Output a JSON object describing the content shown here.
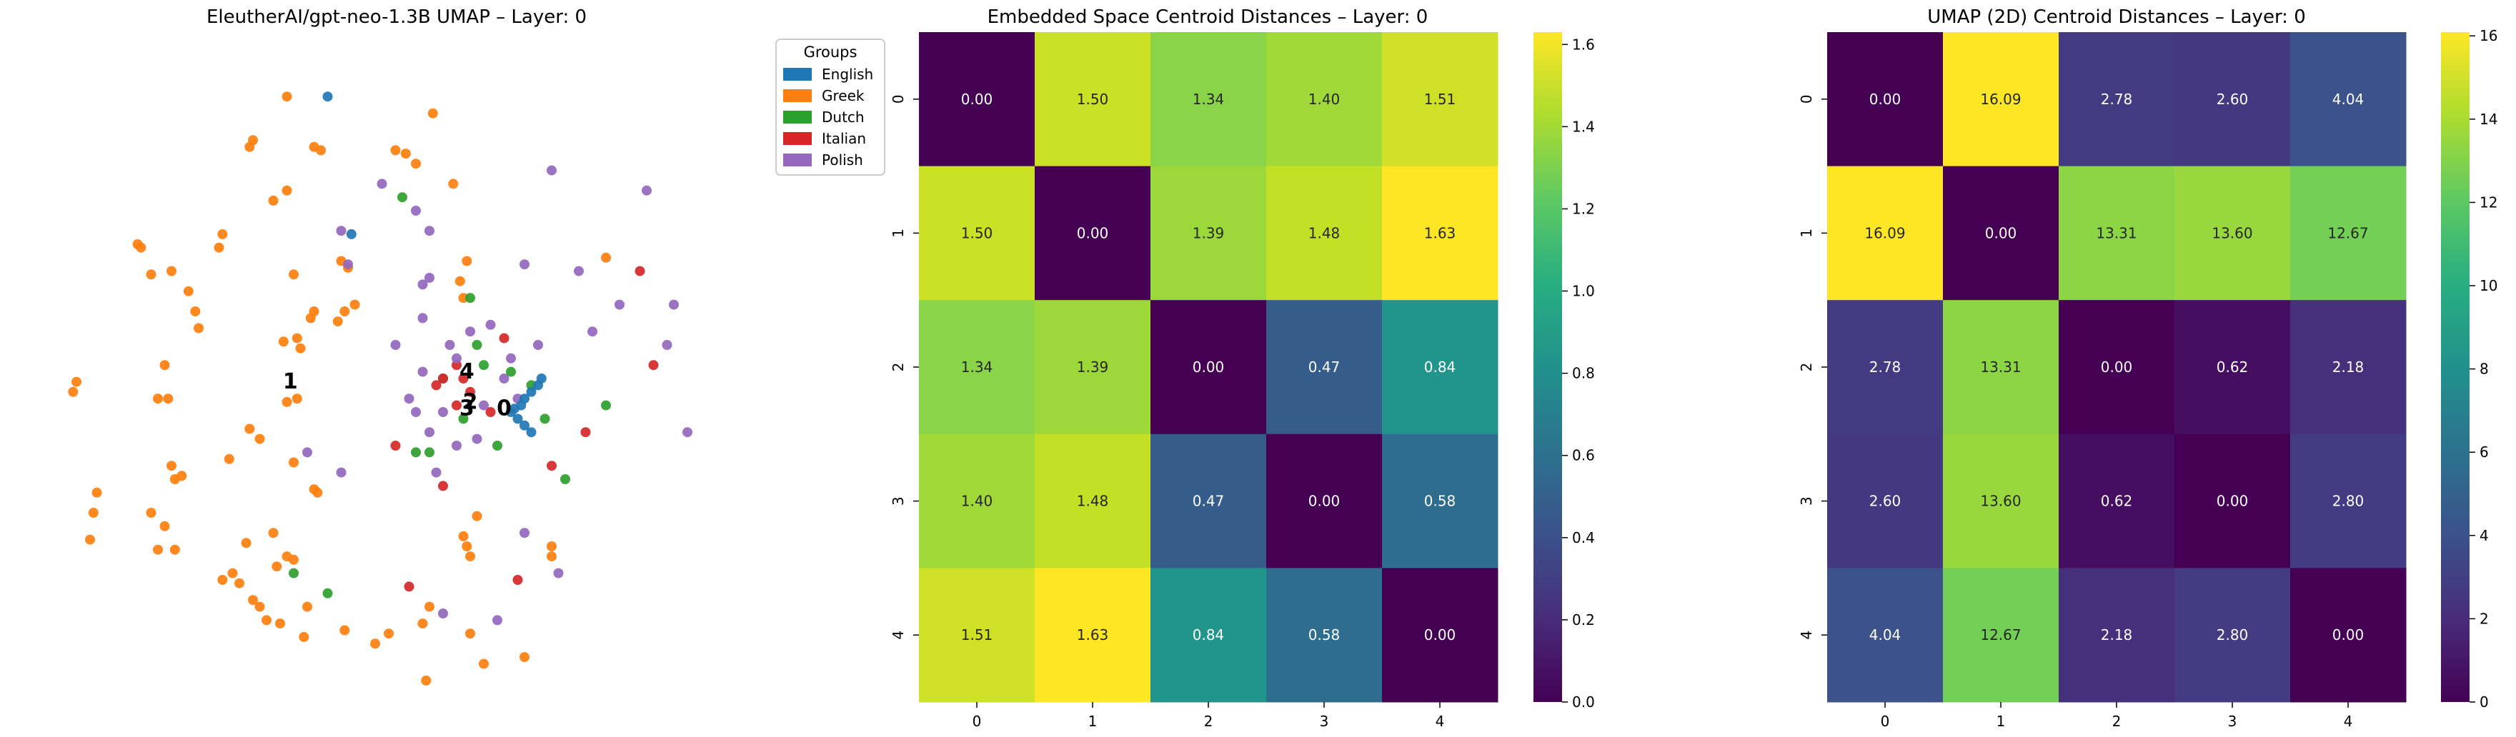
{
  "chart_data": [
    {
      "type": "scatter",
      "title": "EleutherAI/gpt-neo-1.3B UMAP – Layer: 0",
      "legend": {
        "title": "Groups",
        "placement": "outside-right-top",
        "entries": [
          {
            "label": "English",
            "color": "#1f77b4"
          },
          {
            "label": "Greek",
            "color": "#ff7f0e"
          },
          {
            "label": "Dutch",
            "color": "#2ca02c"
          },
          {
            "label": "Italian",
            "color": "#d62728"
          },
          {
            "label": "Polish",
            "color": "#9467bd"
          }
        ]
      },
      "axes_visible": false,
      "centroid_labels": [
        {
          "label": "0",
          "x": 0.69,
          "y": 0.445
        },
        {
          "label": "1",
          "x": 0.375,
          "y": 0.485
        },
        {
          "label": "2",
          "x": 0.64,
          "y": 0.455
        },
        {
          "label": "3",
          "x": 0.635,
          "y": 0.445
        },
        {
          "label": "4",
          "x": 0.635,
          "y": 0.5
        }
      ],
      "series": [
        {
          "name": "Greek",
          "points": [
            [
              0.37,
              0.92
            ],
            [
              0.585,
              0.895
            ],
            [
              0.41,
              0.845
            ],
            [
              0.42,
              0.84
            ],
            [
              0.315,
              0.845
            ],
            [
              0.32,
              0.855
            ],
            [
              0.53,
              0.84
            ],
            [
              0.545,
              0.835
            ],
            [
              0.56,
              0.82
            ],
            [
              0.37,
              0.78
            ],
            [
              0.35,
              0.765
            ],
            [
              0.615,
              0.79
            ],
            [
              0.27,
              0.695
            ],
            [
              0.15,
              0.7
            ],
            [
              0.155,
              0.695
            ],
            [
              0.275,
              0.715
            ],
            [
              0.45,
              0.675
            ],
            [
              0.46,
              0.665
            ],
            [
              0.38,
              0.655
            ],
            [
              0.17,
              0.655
            ],
            [
              0.2,
              0.66
            ],
            [
              0.405,
              0.59
            ],
            [
              0.41,
              0.6
            ],
            [
              0.455,
              0.6
            ],
            [
              0.47,
              0.61
            ],
            [
              0.445,
              0.585
            ],
            [
              0.63,
              0.62
            ],
            [
              0.625,
              0.645
            ],
            [
              0.635,
              0.675
            ],
            [
              0.225,
              0.63
            ],
            [
              0.235,
              0.6
            ],
            [
              0.24,
              0.575
            ],
            [
              0.365,
              0.555
            ],
            [
              0.385,
              0.56
            ],
            [
              0.39,
              0.545
            ],
            [
              0.385,
              0.47
            ],
            [
              0.37,
              0.465
            ],
            [
              0.195,
              0.47
            ],
            [
              0.19,
              0.52
            ],
            [
              0.06,
              0.495
            ],
            [
              0.055,
              0.48
            ],
            [
              0.84,
              0.68
            ],
            [
              0.315,
              0.425
            ],
            [
              0.33,
              0.41
            ],
            [
              0.285,
              0.38
            ],
            [
              0.2,
              0.37
            ],
            [
              0.38,
              0.375
            ],
            [
              0.205,
              0.35
            ],
            [
              0.215,
              0.355
            ],
            [
              0.41,
              0.335
            ],
            [
              0.415,
              0.33
            ],
            [
              0.17,
              0.3
            ],
            [
              0.09,
              0.33
            ],
            [
              0.085,
              0.3
            ],
            [
              0.08,
              0.26
            ],
            [
              0.18,
              0.245
            ],
            [
              0.205,
              0.245
            ],
            [
              0.19,
              0.28
            ],
            [
              0.35,
              0.27
            ],
            [
              0.37,
              0.235
            ],
            [
              0.38,
              0.23
            ],
            [
              0.64,
              0.235
            ],
            [
              0.635,
              0.25
            ],
            [
              0.63,
              0.265
            ],
            [
              0.65,
              0.295
            ],
            [
              0.76,
              0.235
            ],
            [
              0.76,
              0.25
            ],
            [
              0.31,
              0.255
            ],
            [
              0.29,
              0.21
            ],
            [
              0.3,
              0.195
            ],
            [
              0.275,
              0.2
            ],
            [
              0.32,
              0.17
            ],
            [
              0.33,
              0.16
            ],
            [
              0.34,
              0.14
            ],
            [
              0.36,
              0.135
            ],
            [
              0.355,
              0.22
            ],
            [
              0.4,
              0.16
            ],
            [
              0.395,
              0.115
            ],
            [
              0.455,
              0.125
            ],
            [
              0.5,
              0.105
            ],
            [
              0.52,
              0.12
            ],
            [
              0.64,
              0.12
            ],
            [
              0.66,
              0.075
            ],
            [
              0.575,
              0.05
            ],
            [
              0.72,
              0.085
            ],
            [
              0.18,
              0.47
            ],
            [
              0.58,
              0.16
            ],
            [
              0.57,
              0.135
            ]
          ]
        },
        {
          "name": "Dutch",
          "points": [
            [
              0.54,
              0.77
            ],
            [
              0.64,
              0.62
            ],
            [
              0.6,
              0.5
            ],
            [
              0.65,
              0.55
            ],
            [
              0.7,
              0.51
            ],
            [
              0.73,
              0.49
            ],
            [
              0.84,
              0.46
            ],
            [
              0.75,
              0.44
            ],
            [
              0.58,
              0.39
            ],
            [
              0.78,
              0.35
            ],
            [
              0.38,
              0.21
            ],
            [
              0.43,
              0.18
            ],
            [
              0.56,
              0.39
            ],
            [
              0.63,
              0.44
            ],
            [
              0.66,
              0.52
            ],
            [
              0.68,
              0.4
            ]
          ]
        },
        {
          "name": "Italian",
          "points": [
            [
              0.89,
              0.66
            ],
            [
              0.91,
              0.52
            ],
            [
              0.81,
              0.42
            ],
            [
              0.76,
              0.37
            ],
            [
              0.6,
              0.34
            ],
            [
              0.53,
              0.4
            ],
            [
              0.59,
              0.49
            ],
            [
              0.64,
              0.48
            ],
            [
              0.63,
              0.5
            ],
            [
              0.62,
              0.46
            ],
            [
              0.67,
              0.45
            ],
            [
              0.69,
              0.56
            ],
            [
              0.55,
              0.19
            ],
            [
              0.71,
              0.2
            ],
            [
              0.6,
              0.5
            ],
            [
              0.62,
              0.52
            ]
          ]
        },
        {
          "name": "Polish",
          "points": [
            [
              0.94,
              0.61
            ],
            [
              0.93,
              0.55
            ],
            [
              0.96,
              0.42
            ],
            [
              0.86,
              0.61
            ],
            [
              0.82,
              0.57
            ],
            [
              0.8,
              0.66
            ],
            [
              0.72,
              0.67
            ],
            [
              0.9,
              0.78
            ],
            [
              0.76,
              0.81
            ],
            [
              0.51,
              0.79
            ],
            [
              0.45,
              0.72
            ],
            [
              0.46,
              0.67
            ],
            [
              0.58,
              0.72
            ],
            [
              0.56,
              0.75
            ],
            [
              0.58,
              0.65
            ],
            [
              0.45,
              0.36
            ],
            [
              0.4,
              0.39
            ],
            [
              0.72,
              0.27
            ],
            [
              0.77,
              0.21
            ],
            [
              0.68,
              0.14
            ],
            [
              0.6,
              0.15
            ],
            [
              0.57,
              0.64
            ],
            [
              0.55,
              0.47
            ],
            [
              0.56,
              0.45
            ],
            [
              0.57,
              0.51
            ],
            [
              0.58,
              0.42
            ],
            [
              0.6,
              0.45
            ],
            [
              0.61,
              0.55
            ],
            [
              0.62,
              0.4
            ],
            [
              0.64,
              0.57
            ],
            [
              0.66,
              0.46
            ],
            [
              0.67,
              0.58
            ],
            [
              0.69,
              0.5
            ],
            [
              0.7,
              0.53
            ],
            [
              0.71,
              0.47
            ],
            [
              0.74,
              0.55
            ],
            [
              0.57,
              0.59
            ],
            [
              0.53,
              0.55
            ],
            [
              0.62,
              0.53
            ],
            [
              0.65,
              0.41
            ],
            [
              0.59,
              0.36
            ]
          ]
        },
        {
          "name": "English",
          "points": [
            [
              0.43,
              0.92
            ],
            [
              0.465,
              0.715
            ],
            [
              0.7,
              0.45
            ],
            [
              0.71,
              0.44
            ],
            [
              0.72,
              0.43
            ],
            [
              0.73,
              0.42
            ],
            [
              0.705,
              0.455
            ],
            [
              0.715,
              0.46
            ],
            [
              0.72,
              0.47
            ],
            [
              0.73,
              0.48
            ],
            [
              0.74,
              0.49
            ],
            [
              0.745,
              0.5
            ]
          ]
        }
      ]
    },
    {
      "type": "heatmap",
      "title": "Embedded Space Centroid Distances – Layer: 0",
      "x_tick_labels": [
        "0",
        "1",
        "2",
        "3",
        "4"
      ],
      "y_tick_labels": [
        "0",
        "1",
        "2",
        "3",
        "4"
      ],
      "values": [
        [
          0.0,
          1.5,
          1.34,
          1.4,
          1.51
        ],
        [
          1.5,
          0.0,
          1.39,
          1.48,
          1.63
        ],
        [
          1.34,
          1.39,
          0.0,
          0.47,
          0.84
        ],
        [
          1.4,
          1.48,
          0.47,
          0.0,
          0.58
        ],
        [
          1.51,
          1.63,
          0.84,
          0.58,
          0.0
        ]
      ],
      "annotation_format": "2 decimals",
      "colormap": "viridis",
      "colorbar": {
        "vmin": 0.0,
        "vmax": 1.63,
        "ticks": [
          0.0,
          0.2,
          0.4,
          0.6,
          0.8,
          1.0,
          1.2,
          1.4,
          1.6
        ],
        "tick_labels": [
          "0.0",
          "0.2",
          "0.4",
          "0.6",
          "0.8",
          "1.0",
          "1.2",
          "1.4",
          "1.6"
        ]
      }
    },
    {
      "type": "heatmap",
      "title": "UMAP (2D) Centroid Distances – Layer: 0",
      "x_tick_labels": [
        "0",
        "1",
        "2",
        "3",
        "4"
      ],
      "y_tick_labels": [
        "0",
        "1",
        "2",
        "3",
        "4"
      ],
      "values": [
        [
          0.0,
          16.09,
          2.78,
          2.6,
          4.04
        ],
        [
          16.09,
          0.0,
          13.31,
          13.6,
          12.67
        ],
        [
          2.78,
          13.31,
          0.0,
          0.62,
          2.18
        ],
        [
          2.6,
          13.6,
          0.62,
          0.0,
          2.8
        ],
        [
          4.04,
          12.67,
          2.18,
          2.8,
          0.0
        ]
      ],
      "annotation_format": "2 decimals",
      "colormap": "viridis",
      "colorbar": {
        "vmin": 0.0,
        "vmax": 16.09,
        "ticks": [
          0,
          2,
          4,
          6,
          8,
          10,
          12,
          14,
          16
        ],
        "tick_labels": [
          "0",
          "2",
          "4",
          "6",
          "8",
          "10",
          "12",
          "14",
          "16"
        ]
      }
    }
  ]
}
